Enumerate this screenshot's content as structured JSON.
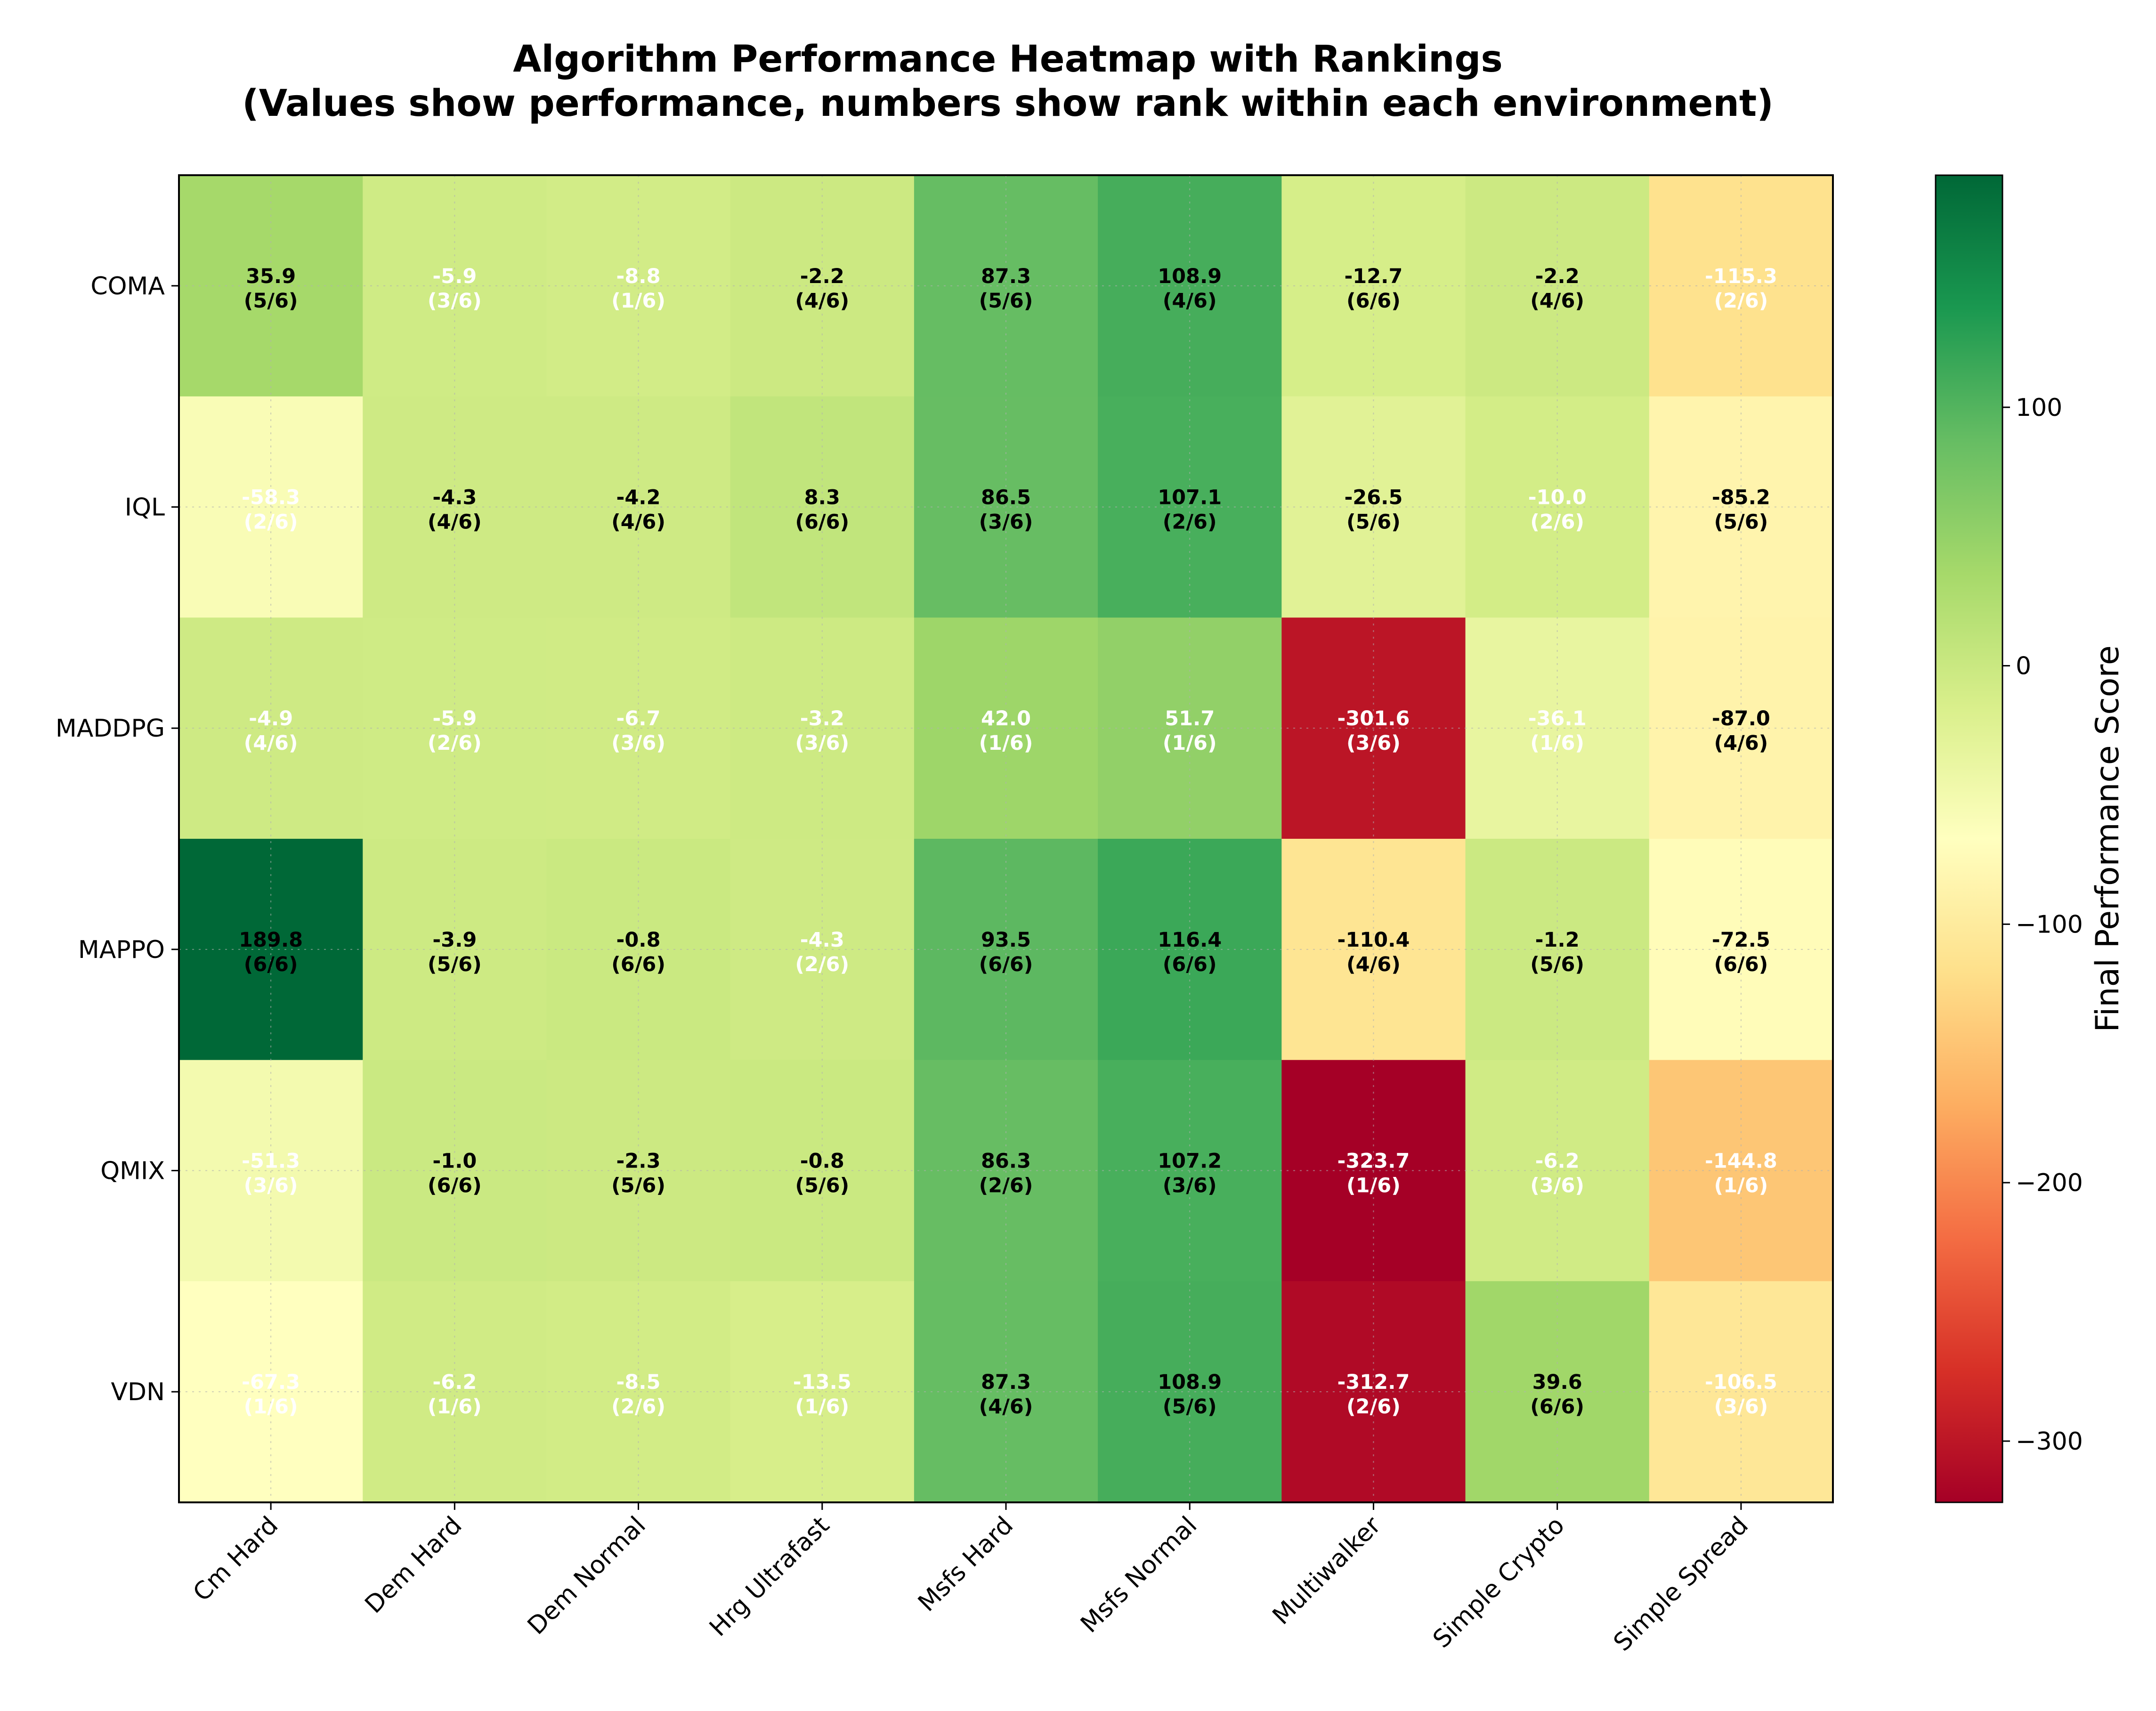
{
  "chart_data": {
    "type": "heatmap",
    "title": "Algorithm Performance Heatmap with Rankings",
    "subtitle": "(Values show performance, numbers show rank within each environment)",
    "colorbar_label": "Final Performance Score",
    "colorbar_ticks": [
      100,
      0,
      -100,
      -200,
      -300
    ],
    "colorbar_tick_labels": [
      "100",
      "0",
      "−100",
      "−200",
      "−300"
    ],
    "value_range": [
      -323.7,
      189.8
    ],
    "colormap": "RdYlGn",
    "grid": true,
    "columns": [
      "Cm Hard",
      "Dem Hard",
      "Dem Normal",
      "Hrg Ultrafast",
      "Msfs Hard",
      "Msfs Normal",
      "Multiwalker",
      "Simple Crypto",
      "Simple Spread"
    ],
    "rows": [
      "COMA",
      "IQL",
      "MADDPG",
      "MAPPO",
      "QMIX",
      "VDN"
    ],
    "values": [
      [
        35.9,
        -5.9,
        -8.8,
        -2.2,
        87.3,
        108.9,
        -12.7,
        -2.2,
        -115.3
      ],
      [
        -58.3,
        -4.3,
        -4.2,
        8.3,
        86.5,
        107.1,
        -26.5,
        -10.0,
        -85.2
      ],
      [
        -4.9,
        -5.9,
        -6.7,
        -3.2,
        42.0,
        51.7,
        -301.6,
        -36.1,
        -87.0
      ],
      [
        189.8,
        -3.9,
        -0.8,
        -4.3,
        93.5,
        116.4,
        -110.4,
        -1.2,
        -72.5
      ],
      [
        -51.3,
        -1.0,
        -2.3,
        -0.8,
        86.3,
        107.2,
        -323.7,
        -6.2,
        -144.8
      ],
      [
        -67.3,
        -6.2,
        -8.5,
        -13.5,
        87.3,
        108.9,
        -312.7,
        39.6,
        -106.5
      ]
    ],
    "value_labels": [
      [
        "35.9",
        "-5.9",
        "-8.8",
        "-2.2",
        "87.3",
        "108.9",
        "-12.7",
        "-2.2",
        "-115.3"
      ],
      [
        "-58.3",
        "-4.3",
        "-4.2",
        "8.3",
        "86.5",
        "107.1",
        "-26.5",
        "-10.0",
        "-85.2"
      ],
      [
        "-4.9",
        "-5.9",
        "-6.7",
        "-3.2",
        "42.0",
        "51.7",
        "-301.6",
        "-36.1",
        "-87.0"
      ],
      [
        "189.8",
        "-3.9",
        "-0.8",
        "-4.3",
        "93.5",
        "116.4",
        "-110.4",
        "-1.2",
        "-72.5"
      ],
      [
        "-51.3",
        "-1.0",
        "-2.3",
        "-0.8",
        "86.3",
        "107.2",
        "-323.7",
        "-6.2",
        "-144.8"
      ],
      [
        "-67.3",
        "-6.2",
        "-8.5",
        "-13.5",
        "87.3",
        "108.9",
        "-312.7",
        "39.6",
        "-106.5"
      ]
    ],
    "rank_labels": [
      [
        "(5/6)",
        "(3/6)",
        "(1/6)",
        "(4/6)",
        "(5/6)",
        "(4/6)",
        "(6/6)",
        "(4/6)",
        "(2/6)"
      ],
      [
        "(2/6)",
        "(4/6)",
        "(4/6)",
        "(6/6)",
        "(3/6)",
        "(2/6)",
        "(5/6)",
        "(2/6)",
        "(5/6)"
      ],
      [
        "(4/6)",
        "(2/6)",
        "(3/6)",
        "(3/6)",
        "(1/6)",
        "(1/6)",
        "(3/6)",
        "(1/6)",
        "(4/6)"
      ],
      [
        "(6/6)",
        "(5/6)",
        "(6/6)",
        "(2/6)",
        "(6/6)",
        "(6/6)",
        "(4/6)",
        "(5/6)",
        "(6/6)"
      ],
      [
        "(3/6)",
        "(6/6)",
        "(5/6)",
        "(5/6)",
        "(2/6)",
        "(3/6)",
        "(1/6)",
        "(3/6)",
        "(1/6)"
      ],
      [
        "(1/6)",
        "(1/6)",
        "(2/6)",
        "(1/6)",
        "(4/6)",
        "(5/6)",
        "(2/6)",
        "(6/6)",
        "(3/6)"
      ]
    ],
    "text_colors": [
      [
        "#000000",
        "#ffffff",
        "#ffffff",
        "#000000",
        "#000000",
        "#000000",
        "#000000",
        "#000000",
        "#ffffff"
      ],
      [
        "#ffffff",
        "#000000",
        "#000000",
        "#000000",
        "#000000",
        "#000000",
        "#000000",
        "#ffffff",
        "#000000"
      ],
      [
        "#ffffff",
        "#ffffff",
        "#ffffff",
        "#ffffff",
        "#ffffff",
        "#ffffff",
        "#ffffff",
        "#ffffff",
        "#000000"
      ],
      [
        "#000000",
        "#000000",
        "#000000",
        "#ffffff",
        "#000000",
        "#000000",
        "#000000",
        "#000000",
        "#000000"
      ],
      [
        "#ffffff",
        "#000000",
        "#000000",
        "#000000",
        "#000000",
        "#000000",
        "#ffffff",
        "#ffffff",
        "#ffffff"
      ],
      [
        "#ffffff",
        "#ffffff",
        "#ffffff",
        "#ffffff",
        "#000000",
        "#000000",
        "#ffffff",
        "#000000",
        "#ffffff"
      ]
    ]
  }
}
